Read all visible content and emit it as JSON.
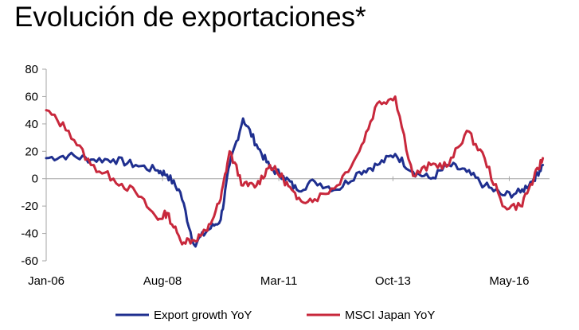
{
  "chart_data": {
    "type": "line",
    "title": "Evolución de exportaciones*",
    "xlabel": "",
    "ylabel": "",
    "ylim": [
      -60,
      80
    ],
    "yticks": [
      "80",
      "60",
      "40",
      "20",
      "0",
      "-20",
      "-40",
      "-60"
    ],
    "xticks": [
      "Jan-06",
      "Aug-08",
      "Mar-11",
      "Oct-13",
      "May-16"
    ],
    "grid": false,
    "legend_position": "bottom",
    "colors": {
      "export": "#1f2f8f",
      "msci": "#c8283c",
      "axis": "#a6a6a6"
    },
    "x": [
      2006.0,
      2006.5,
      2007.0,
      2007.5,
      2008.0,
      2008.5,
      2008.7,
      2009.0,
      2009.3,
      2009.6,
      2009.9,
      2010.1,
      2010.4,
      2010.7,
      2011.0,
      2011.3,
      2011.6,
      2012.0,
      2012.5,
      2013.0,
      2013.4,
      2013.8,
      2014.2,
      2014.6,
      2015.0,
      2015.4,
      2015.8,
      2016.2,
      2016.6,
      2016.9,
      2017.1
    ],
    "series": [
      {
        "name": "Export growth YoY",
        "values": [
          15,
          17,
          14,
          14,
          10,
          6,
          3,
          -10,
          -48,
          -38,
          -30,
          10,
          44,
          25,
          8,
          2,
          -8,
          -2,
          -8,
          5,
          10,
          18,
          5,
          0,
          10,
          5,
          -5,
          -12,
          -10,
          0,
          10
        ]
      },
      {
        "name": "MSCI Japan YoY",
        "values": [
          50,
          35,
          10,
          0,
          -10,
          -30,
          -25,
          -45,
          -45,
          -38,
          -15,
          20,
          -5,
          -5,
          10,
          0,
          -15,
          -15,
          -5,
          20,
          55,
          60,
          2,
          10,
          10,
          35,
          15,
          -20,
          -20,
          0,
          15
        ]
      }
    ]
  }
}
